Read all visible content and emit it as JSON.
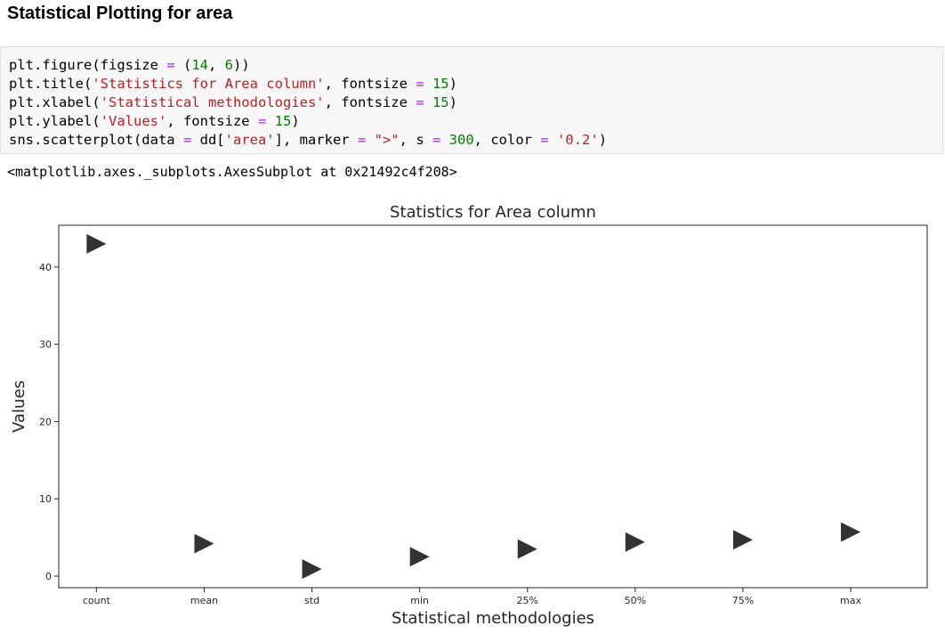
{
  "heading": "Statistical Plotting for area",
  "code_lines": [
    [
      {
        "t": "plt.figure(figsize "
      },
      {
        "t": "=",
        "c": "op"
      },
      {
        "t": " ("
      },
      {
        "t": "14",
        "c": "num"
      },
      {
        "t": ", "
      },
      {
        "t": "6",
        "c": "num"
      },
      {
        "t": "))"
      }
    ],
    [
      {
        "t": "plt.title("
      },
      {
        "t": "'Statistics for Area column'",
        "c": "str"
      },
      {
        "t": ", fontsize "
      },
      {
        "t": "=",
        "c": "op"
      },
      {
        "t": " "
      },
      {
        "t": "15",
        "c": "num"
      },
      {
        "t": ")"
      }
    ],
    [
      {
        "t": "plt.xlabel("
      },
      {
        "t": "'Statistical methodologies'",
        "c": "str"
      },
      {
        "t": ", fontsize "
      },
      {
        "t": "=",
        "c": "op"
      },
      {
        "t": " "
      },
      {
        "t": "15",
        "c": "num"
      },
      {
        "t": ")"
      }
    ],
    [
      {
        "t": "plt.ylabel("
      },
      {
        "t": "'Values'",
        "c": "str"
      },
      {
        "t": ", fontsize "
      },
      {
        "t": "=",
        "c": "op"
      },
      {
        "t": " "
      },
      {
        "t": "15",
        "c": "num"
      },
      {
        "t": ")"
      }
    ],
    [
      {
        "t": "sns.scatterplot(data "
      },
      {
        "t": "=",
        "c": "op"
      },
      {
        "t": " dd["
      },
      {
        "t": "'area'",
        "c": "str"
      },
      {
        "t": "], marker "
      },
      {
        "t": "=",
        "c": "op"
      },
      {
        "t": " "
      },
      {
        "t": "\">\"",
        "c": "str"
      },
      {
        "t": ", s "
      },
      {
        "t": "=",
        "c": "op"
      },
      {
        "t": " "
      },
      {
        "t": "300",
        "c": "num"
      },
      {
        "t": ", color "
      },
      {
        "t": "=",
        "c": "op"
      },
      {
        "t": " "
      },
      {
        "t": "'0.2'",
        "c": "str"
      },
      {
        "t": ")"
      }
    ]
  ],
  "output_text": "<matplotlib.axes._subplots.AxesSubplot at 0x21492c4f208>",
  "colors": {
    "marker": "#333333",
    "axes": "#262626"
  },
  "chart_data": {
    "type": "scatter",
    "title": "Statistics for Area column",
    "xlabel": "Statistical methodologies",
    "ylabel": "Values",
    "marker": "right-triangle",
    "categories": [
      "count",
      "mean",
      "std",
      "min",
      "25%",
      "50%",
      "75%",
      "max"
    ],
    "values": [
      43.0,
      4.2,
      0.9,
      2.5,
      3.5,
      4.4,
      4.7,
      5.7
    ],
    "yticks": [
      0,
      10,
      20,
      30,
      40
    ],
    "ylim": [
      -1.5,
      45.4
    ],
    "grid": false
  }
}
